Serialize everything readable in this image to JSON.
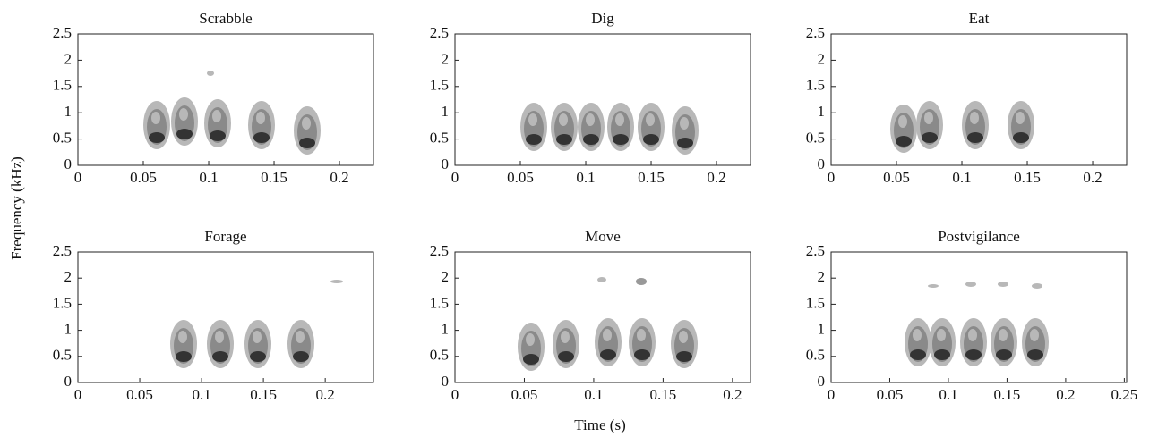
{
  "figure": {
    "xlabel": "Time (s)",
    "ylabel": "Frequency (kHz)"
  },
  "chart_data": [
    {
      "type": "spectrogram",
      "title": "Scrabble",
      "xlim": [
        0,
        0.226
      ],
      "ylim": [
        0,
        2.5
      ],
      "xticks": [
        0,
        0.05,
        0.1,
        0.15,
        0.2
      ],
      "yticks": [
        0,
        0.5,
        1,
        1.5,
        2,
        2.5
      ]
    },
    {
      "type": "spectrogram",
      "title": "Dig",
      "xlim": [
        0,
        0.226
      ],
      "ylim": [
        0,
        2.5
      ],
      "xticks": [
        0,
        0.05,
        0.1,
        0.15,
        0.2
      ],
      "yticks": [
        0,
        0.5,
        1,
        1.5,
        2,
        2.5
      ]
    },
    {
      "type": "spectrogram",
      "title": "Eat",
      "xlim": [
        0,
        0.226
      ],
      "ylim": [
        0,
        2.5
      ],
      "xticks": [
        0,
        0.05,
        0.1,
        0.15,
        0.2
      ],
      "yticks": [
        0,
        0.5,
        1,
        1.5,
        2,
        2.5
      ]
    },
    {
      "type": "spectrogram",
      "title": "Forage",
      "xlim": [
        0,
        0.239
      ],
      "ylim": [
        0,
        2.5
      ],
      "xticks": [
        0,
        0.05,
        0.1,
        0.15,
        0.2
      ],
      "yticks": [
        0,
        0.5,
        1,
        1.5,
        2,
        2.5
      ]
    },
    {
      "type": "spectrogram",
      "title": "Move",
      "xlim": [
        0,
        0.213
      ],
      "ylim": [
        0,
        2.5
      ],
      "xticks": [
        0,
        0.05,
        0.1,
        0.15,
        0.2
      ],
      "yticks": [
        0,
        0.5,
        1,
        1.5,
        2,
        2.5
      ]
    },
    {
      "type": "spectrogram",
      "title": "Postvigilance",
      "xlim": [
        0,
        0.252
      ],
      "ylim": [
        0,
        2.5
      ],
      "xticks": [
        0,
        0.05,
        0.1,
        0.15,
        0.2,
        0.25
      ],
      "yticks": [
        0,
        0.5,
        1,
        1.5,
        2,
        2.5
      ]
    }
  ]
}
